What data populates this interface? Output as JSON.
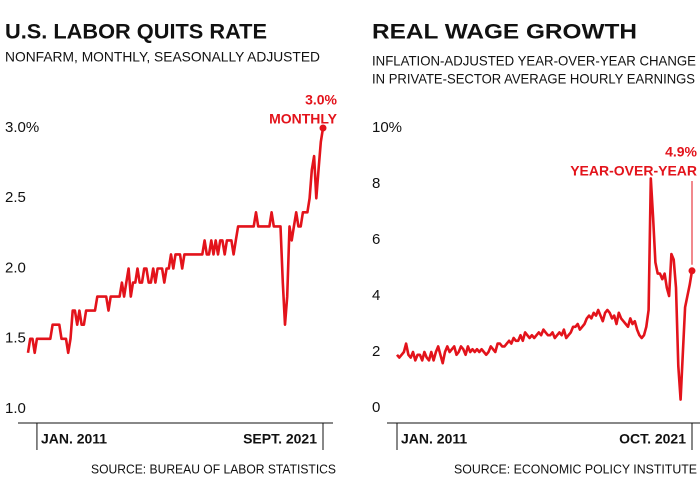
{
  "chart_data": [
    {
      "type": "line",
      "title": "U.S. LABOR QUITS RATE",
      "subtitle": [
        "NONFARM, MONTHLY, SEASONALLY ADJUSTED"
      ],
      "source": "SOURCE: BUREAU OF LABOR STATISTICS",
      "annotation": [
        "3.0%",
        "MONTHLY"
      ],
      "color": "#e3131b",
      "grid": false,
      "ylim": [
        1,
        3
      ],
      "yticks": [
        {
          "value": 1,
          "label": "1.0"
        },
        1.5,
        {
          "value": 2,
          "label": "2.0"
        },
        2.5,
        {
          "value": 3,
          "label": "3.0%"
        }
      ],
      "categories": [
        null,
        null,
        null,
        null,
        "JAN. 2011",
        null,
        null,
        null,
        null,
        null,
        null,
        null,
        null,
        null,
        null,
        null,
        null,
        null,
        null,
        null,
        null,
        null,
        null,
        null,
        null,
        null,
        null,
        null,
        null,
        null,
        null,
        null,
        null,
        null,
        null,
        null,
        null,
        null,
        null,
        null,
        null,
        null,
        null,
        null,
        null,
        null,
        null,
        null,
        null,
        null,
        null,
        null,
        null,
        null,
        null,
        null,
        null,
        null,
        null,
        null,
        null,
        null,
        null,
        null,
        null,
        null,
        null,
        null,
        null,
        null,
        null,
        null,
        null,
        null,
        null,
        null,
        null,
        null,
        null,
        null,
        null,
        null,
        null,
        null,
        null,
        null,
        null,
        null,
        null,
        null,
        null,
        null,
        null,
        null,
        null,
        null,
        null,
        null,
        null,
        null,
        null,
        null,
        null,
        null,
        null,
        null,
        null,
        null,
        null,
        null,
        null,
        null,
        null,
        null,
        null,
        null,
        null,
        null,
        null,
        null,
        null,
        null,
        null,
        null,
        null,
        null,
        null,
        null,
        null,
        null,
        null,
        null,
        "SEPT. 2021"
      ],
      "values": [
        1.4,
        1.5,
        1.5,
        1.4,
        1.5,
        1.5,
        1.5,
        1.5,
        1.5,
        1.5,
        1.5,
        1.6,
        1.6,
        1.6,
        1.6,
        1.5,
        1.5,
        1.5,
        1.4,
        1.5,
        1.7,
        1.7,
        1.6,
        1.7,
        1.6,
        1.6,
        1.7,
        1.7,
        1.7,
        1.7,
        1.7,
        1.8,
        1.8,
        1.8,
        1.8,
        1.8,
        1.7,
        1.8,
        1.8,
        1.8,
        1.8,
        1.8,
        1.9,
        1.8,
        1.9,
        2.0,
        1.8,
        1.9,
        1.9,
        2.0,
        1.9,
        1.9,
        2.0,
        2.0,
        1.9,
        1.9,
        2.0,
        1.9,
        2.0,
        2.0,
        2.0,
        1.9,
        2.0,
        2.0,
        2.1,
        2.0,
        2.1,
        2.1,
        2.1,
        2.0,
        2.1,
        2.1,
        2.1,
        2.1,
        2.1,
        2.1,
        2.1,
        2.1,
        2.1,
        2.2,
        2.1,
        2.1,
        2.2,
        2.1,
        2.2,
        2.1,
        2.2,
        2.2,
        2.1,
        2.2,
        2.2,
        2.2,
        2.1,
        2.2,
        2.3,
        2.3,
        2.3,
        2.3,
        2.3,
        2.3,
        2.3,
        2.3,
        2.4,
        2.3,
        2.3,
        2.3,
        2.3,
        2.3,
        2.3,
        2.4,
        2.3,
        2.3,
        2.3,
        2.3,
        1.9,
        1.6,
        1.8,
        2.3,
        2.2,
        2.3,
        2.4,
        2.3,
        2.3,
        2.4,
        2.4,
        2.4,
        2.5,
        2.7,
        2.8,
        2.5,
        2.7,
        2.9,
        3.0
      ]
    },
    {
      "type": "line",
      "title": "REAL WAGE GROWTH",
      "subtitle": [
        "INFLATION-ADJUSTED YEAR-OVER-YEAR CHANGE",
        "IN PRIVATE-SECTOR AVERAGE HOURLY EARNINGS"
      ],
      "source": "SOURCE: ECONOMIC POLICY INSTITUTE",
      "annotation": [
        "4.9%",
        "YEAR-OVER-YEAR"
      ],
      "color": "#e3131b",
      "grid": false,
      "ylim": [
        0,
        10
      ],
      "yticks": [
        0,
        2,
        4,
        6,
        8,
        {
          "value": 10,
          "label": "10%"
        }
      ],
      "categories": [
        "JAN. 2011",
        null,
        null,
        null,
        null,
        null,
        null,
        null,
        null,
        null,
        null,
        null,
        null,
        null,
        null,
        null,
        null,
        null,
        null,
        null,
        null,
        null,
        null,
        null,
        null,
        null,
        null,
        null,
        null,
        null,
        null,
        null,
        null,
        null,
        null,
        null,
        null,
        null,
        null,
        null,
        null,
        null,
        null,
        null,
        null,
        null,
        null,
        null,
        null,
        null,
        null,
        null,
        null,
        null,
        null,
        null,
        null,
        null,
        null,
        null,
        null,
        null,
        null,
        null,
        null,
        null,
        null,
        null,
        null,
        null,
        null,
        null,
        null,
        null,
        null,
        null,
        null,
        null,
        null,
        null,
        null,
        null,
        null,
        null,
        null,
        null,
        null,
        null,
        null,
        null,
        null,
        null,
        null,
        null,
        null,
        null,
        null,
        null,
        null,
        null,
        null,
        null,
        null,
        null,
        null,
        null,
        null,
        null,
        null,
        null,
        null,
        null,
        null,
        null,
        null,
        null,
        null,
        null,
        null,
        null,
        null,
        null,
        null,
        null,
        null,
        null,
        null,
        null,
        null,
        "OCT. 2021"
      ],
      "values": [
        1.9,
        1.8,
        1.9,
        2.0,
        2.3,
        1.9,
        1.8,
        2.0,
        1.7,
        1.9,
        1.9,
        1.7,
        2.0,
        1.8,
        1.7,
        2.0,
        1.7,
        2.0,
        2.2,
        1.9,
        1.6,
        2.0,
        2.2,
        2.0,
        2.1,
        2.2,
        1.9,
        2.0,
        2.2,
        2.1,
        1.9,
        2.2,
        2.0,
        2.1,
        2.0,
        2.1,
        2.0,
        2.1,
        2.0,
        1.9,
        2.0,
        2.2,
        2.1,
        2.0,
        2.3,
        2.3,
        2.2,
        2.2,
        2.3,
        2.4,
        2.3,
        2.5,
        2.4,
        2.4,
        2.6,
        2.4,
        2.7,
        2.6,
        2.5,
        2.6,
        2.5,
        2.6,
        2.7,
        2.6,
        2.8,
        2.7,
        2.6,
        2.6,
        2.7,
        2.5,
        2.6,
        2.7,
        2.6,
        2.8,
        2.5,
        2.6,
        2.7,
        2.9,
        2.9,
        3.0,
        2.8,
        2.9,
        3.0,
        3.2,
        3.3,
        3.2,
        3.4,
        3.3,
        3.5,
        3.3,
        3.1,
        3.4,
        3.5,
        3.4,
        3.2,
        3.3,
        3.0,
        3.4,
        3.2,
        3.1,
        3.0,
        2.9,
        3.2,
        3.0,
        3.1,
        2.8,
        2.6,
        2.5,
        2.6,
        2.9,
        3.5,
        8.2,
        6.8,
        5.2,
        4.8,
        4.8,
        4.6,
        4.8,
        4.3,
        4.0,
        5.5,
        5.3,
        4.3,
        1.5,
        0.3,
        2.0,
        3.6,
        4.0,
        4.4,
        4.9
      ]
    }
  ]
}
